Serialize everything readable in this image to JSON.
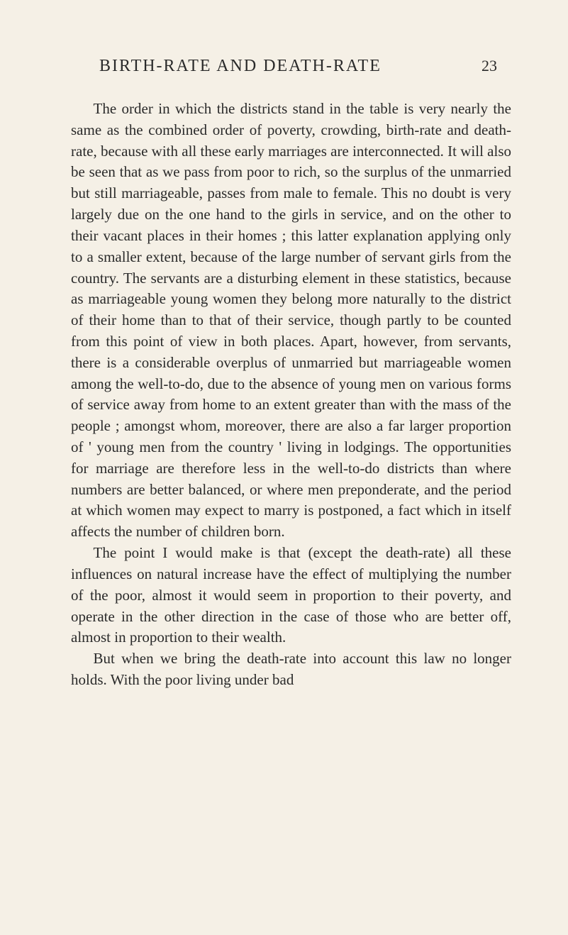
{
  "page": {
    "header_title": "BIRTH-RATE AND DEATH-RATE",
    "page_number": "23",
    "background_color": "#f5f0e6",
    "text_color": "#2a2a2a",
    "font_family": "Times New Roman",
    "body_font_size": 21,
    "header_font_size": 24,
    "line_height": 1.42
  },
  "paragraphs": [
    {
      "text": "The order in which the districts stand in the table is very nearly the same as the combined order of poverty, crowding, birth-rate and death-rate, because with all these early marriages are interconnected. It will also be seen that as we pass from poor to rich, so the surplus of the unmarried but still marriageable, passes from male to female. This no doubt is very largely due on the one hand to the girls in service, and on the other to their vacant places in their homes ; this latter explanation applying only to a smaller extent, because of the large number of servant girls from the country. The servants are a disturbing element in these statistics, because as marriageable young women they belong more naturally to the district of their home than to that of their service, though partly to be counted from this point of view in both places. Apart, however, from servants, there is a considerable overplus of unmarried but marriageable women among the well-to-do, due to the absence of young men on various forms of service away from home to an extent greater than with the mass of the people ; amongst whom, more­over, there are also a far larger proportion of ' young men from the country ' living in lodgings. The opportunities for marriage are therefore less in the well-to-do districts than where numbers are better balanced, or where men preponderate, and the period at which women may expect to marry is postponed, a fact which in itself affects the number of children born."
    },
    {
      "text": "The point I would make is that (except the death-rate) all these influences on natural increase have the effect of multiplying the number of the poor, almost it would seem in proportion to their poverty, and operate in the other direction in the case of those who are better off, almost in proportion to their wealth."
    },
    {
      "text": "But when we bring the death-rate into account this law no longer holds. With the poor living under bad"
    }
  ]
}
